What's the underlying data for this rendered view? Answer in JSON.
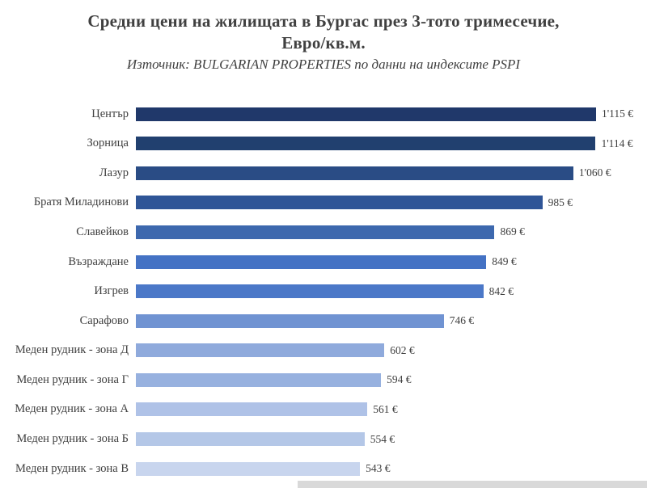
{
  "header": {
    "title_line1": "Средни цени на жилищата в Бургас през 3-тото тримесечие,",
    "title_line2": "Евро/кв.м.",
    "subtitle": "Източник: BULGARIAN PROPERTIES по данни на индексите PSPI"
  },
  "chart_data": {
    "type": "bar",
    "orientation": "horizontal",
    "title": "Средни цени на жилищата в Бургас през 3-тото тримесечие, Евро/кв.м.",
    "subtitle": "Източник: BULGARIAN PROPERTIES по данни на индексите PSPI",
    "xlabel": "",
    "ylabel": "",
    "xlim": [
      0,
      1115
    ],
    "grid": false,
    "legend": "none",
    "unit": "€",
    "categories": [
      "Център",
      "Зорница",
      "Лазур",
      "Братя Миладинови",
      "Славейков",
      "Възраждане",
      "Изгрев",
      "Сарафово",
      "Меден рудник - зона Д",
      "Меден рудник - зона Г",
      "Меден рудник - зона А",
      "Меден рудник - зона Б",
      "Меден рудник - зона В"
    ],
    "values": [
      1115,
      1114,
      1060,
      985,
      869,
      849,
      842,
      746,
      602,
      594,
      561,
      554,
      543
    ],
    "value_labels": [
      "1'115 €",
      "1'114 €",
      "1'060 €",
      "985 €",
      "869 €",
      "849 €",
      "842 €",
      "746 €",
      "602 €",
      "594 €",
      "561 €",
      "554 €",
      "543 €"
    ],
    "colors": [
      "#20386a",
      "#21406f",
      "#2a4c85",
      "#2f5597",
      "#3d68ae",
      "#4472c4",
      "#4b78c8",
      "#7093d2",
      "#8faadc",
      "#97b1df",
      "#afc2e7",
      "#b4c7e7",
      "#c8d5ee"
    ]
  }
}
